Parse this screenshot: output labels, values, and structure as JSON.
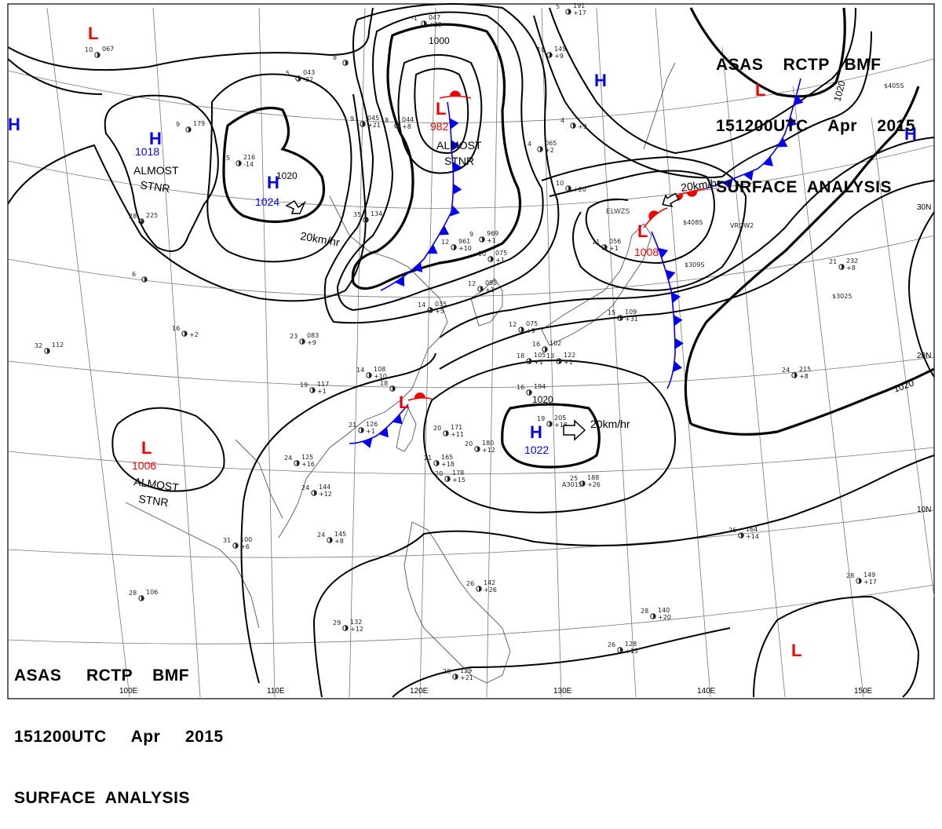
{
  "header_top_right": {
    "line1": "ASAS    RCTP   BMF",
    "line2": "151200UTC    Apr    2015",
    "line3": "SURFACE  ANALYSIS"
  },
  "header_bottom_left": {
    "line1": "ASAS     RCTP    BMF",
    "line2": "151200UTC     Apr     2015",
    "line3": "SURFACE  ANALYSIS"
  },
  "longitudes": [
    "100E",
    "110E",
    "120E",
    "130E",
    "140E",
    "150E"
  ],
  "latitudes": [
    "30N",
    "20N",
    "10N"
  ],
  "pressure_systems": [
    {
      "type": "L",
      "value": "",
      "color": "#ee0000"
    },
    {
      "type": "H",
      "value": "1018",
      "color": "#0000ee"
    },
    {
      "type": "H",
      "value": "",
      "color": "#0000ee"
    },
    {
      "type": "H",
      "value": "1024",
      "color": "#0000ee"
    },
    {
      "type": "L",
      "value": "982",
      "color": "#ee0000"
    },
    {
      "type": "H",
      "value": "",
      "color": "#0000ee"
    },
    {
      "type": "L",
      "value": "",
      "color": "#ee0000"
    },
    {
      "type": "H",
      "value": "",
      "color": "#0000ee"
    },
    {
      "type": "L",
      "value": "1008",
      "color": "#ee0000"
    },
    {
      "type": "L",
      "value": "",
      "color": "#ee0000"
    },
    {
      "type": "H",
      "value": "1022",
      "color": "#0000ee"
    },
    {
      "type": "L",
      "value": "1006",
      "color": "#ee0000"
    },
    {
      "type": "L",
      "value": "",
      "color": "#ee0000"
    }
  ],
  "annotations": {
    "almost_stnr": [
      "ALMOST",
      "STNR"
    ],
    "speed": "20km/hr",
    "warning": "ELWZS"
  },
  "isobar_labels": [
    "1000",
    "1020",
    "1020",
    "1020",
    "1020"
  ],
  "station_obs": [
    {
      "t": "21",
      "p": "126",
      "d": "+1"
    },
    {
      "t": "23",
      "p": "083",
      "d": "+9"
    },
    {
      "t": "14",
      "p": "108",
      "d": "+10"
    },
    {
      "t": "19",
      "p": "117",
      "d": "+1"
    },
    {
      "t": "24",
      "p": "125",
      "d": "+16"
    },
    {
      "t": "24",
      "p": "144",
      "d": "+12"
    },
    {
      "t": "24",
      "p": "145",
      "d": "+8"
    },
    {
      "t": "31",
      "p": "100",
      "d": "+6"
    },
    {
      "t": "28",
      "p": "106",
      "d": ""
    },
    {
      "t": "29",
      "p": "132",
      "d": "+12"
    },
    {
      "t": "20",
      "p": "171",
      "d": "+11"
    },
    {
      "t": "21",
      "p": "165",
      "d": "+18"
    },
    {
      "t": "20",
      "p": "180",
      "d": "+12"
    },
    {
      "t": "20",
      "p": "178",
      "d": "+15"
    },
    {
      "t": "16",
      "p": "194",
      "d": ""
    },
    {
      "t": "19",
      "p": "205",
      "d": "+18"
    },
    {
      "t": "25",
      "p": "188",
      "d": "+26"
    },
    {
      "t": "24",
      "p": "215",
      "d": "+8"
    },
    {
      "t": "26",
      "p": "164",
      "d": "+14"
    },
    {
      "t": "28",
      "p": "149",
      "d": "+17"
    },
    {
      "t": "28",
      "p": "140",
      "d": "+20"
    },
    {
      "t": "26",
      "p": "128",
      "d": "+15"
    },
    {
      "t": "28",
      "p": "129",
      "d": "+21"
    },
    {
      "t": "26",
      "p": "142",
      "d": "+26"
    },
    {
      "t": "32",
      "p": "112",
      "d": ""
    },
    {
      "t": "16",
      "p": "",
      "d": "+2"
    },
    {
      "t": "28",
      "p": "225",
      "d": ""
    },
    {
      "t": "10",
      "p": "075",
      "d": "+1"
    },
    {
      "t": "12",
      "p": "095",
      "d": "+1"
    },
    {
      "t": "15",
      "p": "109",
      "d": "+31"
    },
    {
      "t": "21",
      "p": "232",
      "d": "+8"
    },
    {
      "t": "35",
      "p": "134",
      "d": ""
    },
    {
      "t": "14",
      "p": "035",
      "d": "+5"
    },
    {
      "t": "18",
      "p": "",
      "d": ""
    },
    {
      "t": "10",
      "p": "067",
      "d": ""
    },
    {
      "t": "5",
      "p": "043",
      "d": "-22"
    },
    {
      "t": "5",
      "p": "216",
      "d": "-14"
    },
    {
      "t": "-1",
      "p": "047",
      "d": "+29"
    },
    {
      "t": "9",
      "p": "045",
      "d": "+21"
    },
    {
      "t": "8",
      "p": "044",
      "d": "+8"
    },
    {
      "t": "9",
      "p": "969",
      "d": "+1"
    },
    {
      "t": "12",
      "p": "961",
      "d": "+10"
    },
    {
      "t": "4",
      "p": "065",
      "d": "+2"
    },
    {
      "t": "11",
      "p": "056",
      "d": "+1"
    },
    {
      "t": "10",
      "p": "145",
      "d": "+9"
    },
    {
      "t": "5",
      "p": "191",
      "d": "+17"
    },
    {
      "t": "12",
      "p": "075",
      "d": "+9"
    },
    {
      "t": "16",
      "p": "102",
      "d": ""
    },
    {
      "t": "18",
      "p": "105",
      "d": "+1"
    },
    {
      "t": "13",
      "p": "122",
      "d": "+1"
    },
    {
      "t": "9",
      "p": "179",
      "d": ""
    },
    {
      "t": "10",
      "p": "",
      "d": "+20"
    },
    {
      "t": "4",
      "p": "",
      "d": "+9"
    },
    {
      "t": "6",
      "p": "",
      "d": ""
    },
    {
      "t": "8",
      "p": "",
      "d": ""
    }
  ],
  "ship_reports": [
    "A3015",
    "$3025",
    "$405S",
    "$408S",
    "$309S",
    "VRGW2"
  ],
  "colors": {
    "cold_front": "#0000ee",
    "warm_front": "#ee0000",
    "high": "#0000ee",
    "low": "#ee0000"
  }
}
